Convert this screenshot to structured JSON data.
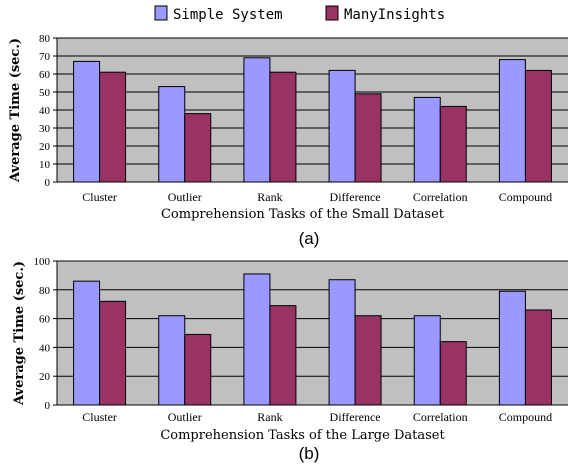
{
  "legend": {
    "items": [
      {
        "label": "Simple System",
        "color": "#9999ff"
      },
      {
        "label": "ManyInsights",
        "color": "#993366"
      }
    ]
  },
  "chart_data": [
    {
      "type": "bar",
      "panel_label": "(a)",
      "xlabel": "Comprehension Tasks of the Small Dataset",
      "ylabel": "Average Time (sec.)",
      "categories": [
        "Cluster",
        "Outlier",
        "Rank",
        "Difference",
        "Correlation",
        "Compound"
      ],
      "ylim": [
        0,
        80
      ],
      "yticks": [
        0,
        10,
        20,
        30,
        40,
        50,
        60,
        70,
        80
      ],
      "grid": true,
      "series": [
        {
          "name": "Simple System",
          "values": [
            67,
            53,
            69,
            62,
            47,
            68
          ]
        },
        {
          "name": "ManyInsights",
          "values": [
            61,
            38,
            61,
            49,
            42,
            62
          ]
        }
      ]
    },
    {
      "type": "bar",
      "panel_label": "(b)",
      "xlabel": "Comprehension Tasks of the Large Dataset",
      "ylabel": "Average Time (sec.)",
      "categories": [
        "Cluster",
        "Outlier",
        "Rank",
        "Difference",
        "Correlation",
        "Compound"
      ],
      "ylim": [
        0,
        100
      ],
      "yticks": [
        0,
        20,
        40,
        60,
        80,
        100
      ],
      "grid": true,
      "series": [
        {
          "name": "Simple System",
          "values": [
            86,
            62,
            91,
            87,
            62,
            79
          ]
        },
        {
          "name": "ManyInsights",
          "values": [
            72,
            49,
            69,
            62,
            44,
            66
          ]
        }
      ]
    }
  ]
}
